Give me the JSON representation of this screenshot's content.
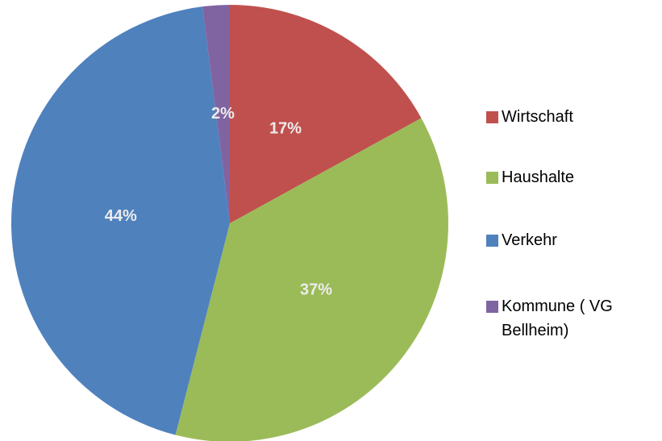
{
  "chart_data": {
    "type": "pie",
    "categories": [
      "Wirtschaft",
      "Haushalte",
      "Verkehr",
      "Kommune ( VG Bellheim)"
    ],
    "values": [
      17,
      37,
      44,
      2
    ],
    "value_labels": [
      "17%",
      "37%",
      "44%",
      "2%"
    ],
    "colors": [
      "#c0504d",
      "#9bbb59",
      "#4f81bd",
      "#8064a2"
    ],
    "legend": "right"
  }
}
